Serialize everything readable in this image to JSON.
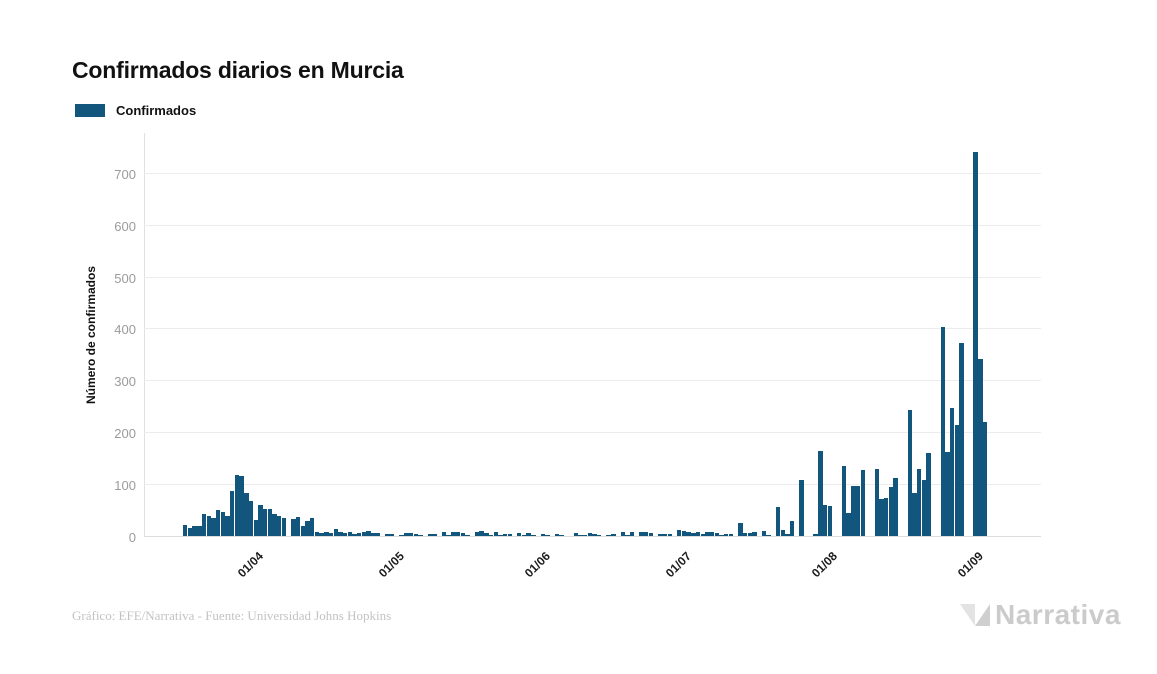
{
  "page": {
    "title": "Confirmados diarios en Murcia"
  },
  "legend": {
    "label": "Confirmados",
    "color": "#12567d"
  },
  "footer": {
    "source": "Gráfico: EFE/Narrativa - Fuente: Universidad Johns Hopkins",
    "brand": "Narrativa"
  },
  "chart_data": {
    "type": "bar",
    "title": "Confirmados diarios en Murcia",
    "series_name": "Confirmados",
    "xlabel": "",
    "ylabel": "Número de confirmados",
    "ylim": [
      0,
      740
    ],
    "yticks": [
      0,
      100,
      200,
      300,
      400,
      500,
      600,
      700
    ],
    "xticks": [
      "01/04",
      "01/05",
      "01/06",
      "01/07",
      "01/08",
      "01/09"
    ],
    "grid": "horizontal",
    "legend_position": "top-left",
    "bar_color": "#12567d",
    "dates": [
      "17/03",
      "18/03",
      "19/03",
      "20/03",
      "21/03",
      "22/03",
      "23/03",
      "24/03",
      "25/03",
      "26/03",
      "27/03",
      "28/03",
      "29/03",
      "30/03",
      "31/03",
      "01/04",
      "02/04",
      "03/04",
      "04/04",
      "05/04",
      "06/04",
      "07/04",
      "08/04",
      "09/04",
      "10/04",
      "11/04",
      "12/04",
      "13/04",
      "14/04",
      "15/04",
      "16/04",
      "17/04",
      "18/04",
      "19/04",
      "20/04",
      "21/04",
      "22/04",
      "23/04",
      "24/04",
      "25/04",
      "26/04",
      "27/04",
      "28/04",
      "29/04",
      "30/04",
      "01/05",
      "02/05",
      "03/05",
      "04/05",
      "05/05",
      "06/05",
      "07/05",
      "08/05",
      "09/05",
      "10/05",
      "11/05",
      "12/05",
      "13/05",
      "14/05",
      "15/05",
      "16/05",
      "17/05",
      "18/05",
      "19/05",
      "20/05",
      "21/05",
      "22/05",
      "23/05",
      "24/05",
      "25/05",
      "26/05",
      "27/05",
      "28/05",
      "29/05",
      "30/05",
      "31/05",
      "01/06",
      "02/06",
      "03/06",
      "04/06",
      "05/06",
      "06/06",
      "07/06",
      "08/06",
      "09/06",
      "10/06",
      "11/06",
      "12/06",
      "13/06",
      "14/06",
      "15/06",
      "16/06",
      "17/06",
      "18/06",
      "19/06",
      "20/06",
      "21/06",
      "22/06",
      "23/06",
      "24/06",
      "25/06",
      "26/06",
      "27/06",
      "28/06",
      "29/06",
      "30/06",
      "01/07",
      "02/07",
      "03/07",
      "04/07",
      "05/07",
      "06/07",
      "07/07",
      "08/07",
      "09/07",
      "10/07",
      "11/07",
      "12/07",
      "13/07",
      "14/07",
      "15/07",
      "16/07",
      "17/07",
      "18/07",
      "19/07",
      "20/07",
      "21/07",
      "22/07",
      "23/07",
      "24/07",
      "25/07",
      "26/07",
      "27/07",
      "28/07",
      "29/07",
      "30/07",
      "31/07",
      "01/08",
      "02/08",
      "03/08",
      "04/08",
      "05/08",
      "06/08",
      "07/08",
      "08/08",
      "09/08",
      "10/08",
      "11/08",
      "12/08",
      "13/08",
      "14/08",
      "15/08",
      "16/08",
      "17/08",
      "18/08",
      "19/08",
      "20/08",
      "21/08",
      "22/08",
      "23/08",
      "24/08",
      "25/08",
      "26/08",
      "27/08",
      "28/08",
      "29/08",
      "30/08",
      "31/08",
      "01/09",
      "02/09",
      "03/09"
    ],
    "values": [
      22,
      16,
      20,
      20,
      42,
      38,
      34,
      51,
      47,
      39,
      87,
      118,
      115,
      83,
      68,
      31,
      60,
      53,
      52,
      42,
      38,
      35,
      0,
      33,
      36,
      20,
      29,
      34,
      8,
      6,
      7,
      6,
      13,
      8,
      6,
      7,
      4,
      5,
      8,
      10,
      5,
      5,
      0,
      3,
      3,
      0,
      2,
      5,
      6,
      3,
      2,
      0,
      3,
      3,
      0,
      7,
      1,
      7,
      8,
      5,
      2,
      0,
      8,
      9,
      6,
      2,
      8,
      1,
      3,
      4,
      0,
      6,
      2,
      5,
      2,
      0,
      4,
      2,
      0,
      4,
      2,
      0,
      0,
      5,
      2,
      1,
      5,
      4,
      2,
      0,
      2,
      3,
      0,
      7,
      1,
      7,
      0,
      8,
      8,
      6,
      0,
      4,
      4,
      3,
      0,
      11,
      9,
      8,
      6,
      7,
      3,
      8,
      7,
      5,
      1,
      4,
      3,
      0,
      25,
      5,
      6,
      8,
      0,
      10,
      2,
      0,
      55,
      12,
      4,
      28,
      0,
      108,
      0,
      0,
      3,
      164,
      60,
      58,
      0,
      0,
      135,
      44,
      96,
      97,
      128,
      0,
      0,
      130,
      71,
      74,
      94,
      111,
      0,
      0,
      242,
      83,
      129,
      108,
      160,
      0,
      0,
      403,
      161,
      247,
      213,
      371,
      0,
      0,
      740,
      342,
      220
    ]
  }
}
